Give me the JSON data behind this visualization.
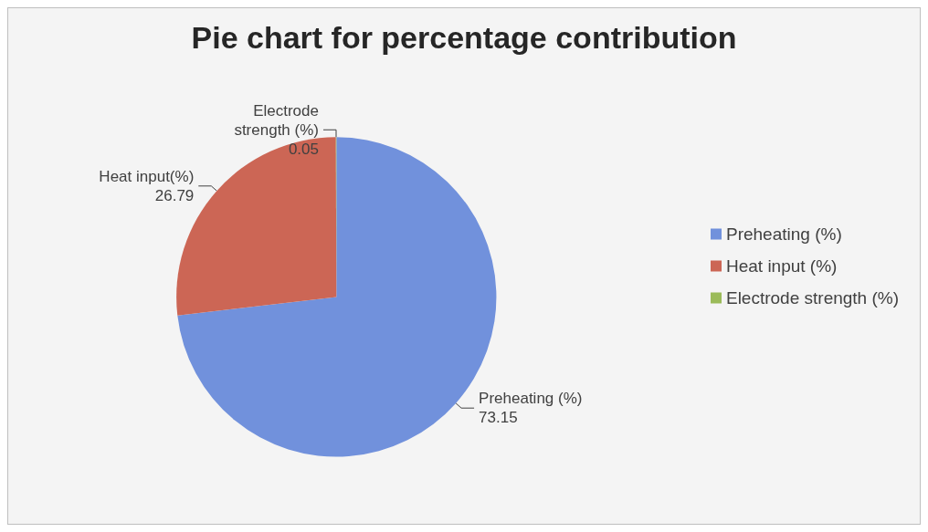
{
  "chart_data": {
    "type": "pie",
    "title": "Pie chart for percentage contribution",
    "categories": [
      "Preheating (%)",
      "Heat input (%)",
      "Electrode strength (%)"
    ],
    "values": [
      73.15,
      26.79,
      0.05
    ],
    "colors": [
      "#7191dc",
      "#cc6655",
      "#9bbb59"
    ],
    "value_labels": [
      "Preheating (%)\n73.15",
      "Heat input(%)\n26.79",
      "Electrode\nstrength (%)\n0.05"
    ],
    "legend": "right"
  }
}
